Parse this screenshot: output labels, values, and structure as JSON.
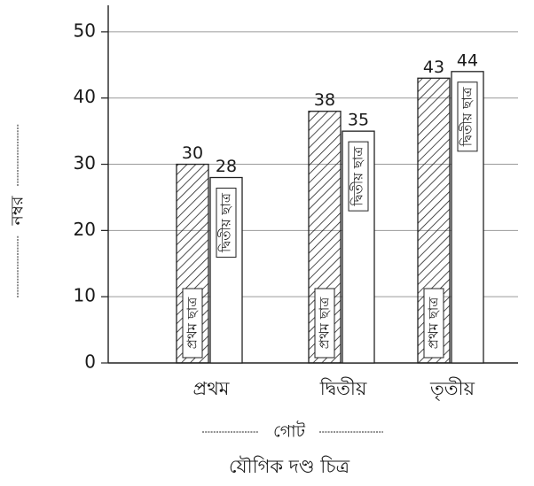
{
  "chart_data": {
    "type": "bar",
    "title": "যৌগিক দণ্ড চিত্র",
    "xlabel": "গোট",
    "ylabel": "নম্বর",
    "categories": [
      "প্রথম",
      "দ্বিতীয়",
      "তৃতীয়"
    ],
    "series": [
      {
        "name": "প্রথম ছাত্র",
        "values": [
          30,
          38,
          43
        ],
        "pattern": "hatched"
      },
      {
        "name": "দ্বিতীয় ছাত্র",
        "values": [
          28,
          35,
          44
        ],
        "pattern": "plain"
      }
    ],
    "yticks": [
      0,
      10,
      20,
      30,
      40,
      50
    ],
    "ylim": [
      0,
      54
    ],
    "grid": true,
    "legend": "none",
    "colors": {
      "hatch": "#222222",
      "bar_fill": "#ffffff",
      "grid": "#9a9a9a",
      "axis": "#222222"
    }
  }
}
